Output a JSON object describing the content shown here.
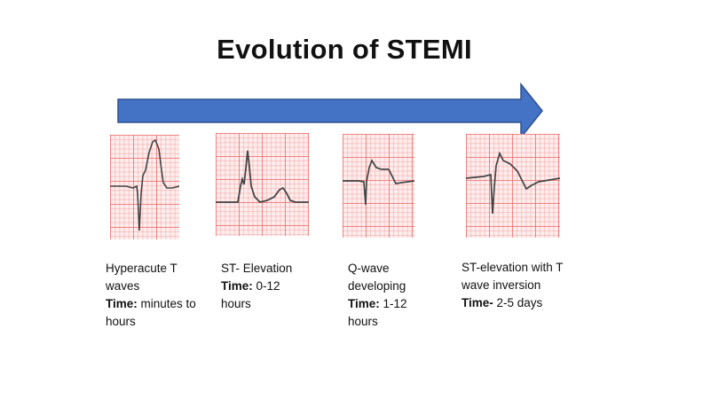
{
  "title": "Evolution of STEMI",
  "colors": {
    "arrow": "#4472c4",
    "arrow_border": "#2f528f",
    "ecg_grid": "#f07070",
    "trace": "#444444"
  },
  "stages": [
    {
      "line1": "Hyperacute T",
      "line2": "waves",
      "time_label": "Time:",
      "time_value": " minutes to",
      "line4": "hours"
    },
    {
      "line1": "ST- Elevation",
      "time_label": "Time:",
      "time_value": " 0-12",
      "line3": "hours"
    },
    {
      "line1": "Q-wave",
      "line2": "developing",
      "time_label": "Time:",
      "time_value": " 1-12",
      "line4": "hours"
    },
    {
      "line1": "ST-elevation with T",
      "line2": "wave inversion",
      "time_label": "Time-",
      "time_value": " 2-5 days"
    }
  ]
}
